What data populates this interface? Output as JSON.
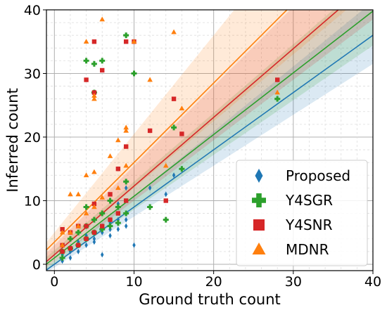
{
  "chart_data": {
    "type": "scatter",
    "xlabel": "Ground truth count",
    "ylabel": "Inferred count",
    "xlim": [
      -1,
      40
    ],
    "ylim": [
      -1,
      40
    ],
    "xticks": [
      0,
      10,
      20,
      30,
      40
    ],
    "yticks": [
      0,
      10,
      20,
      30,
      40
    ],
    "grid": true,
    "legend_position": "bottom-right",
    "series": [
      {
        "name": "Proposed",
        "marker": "diamond",
        "color": "#1f77b4",
        "fit": {
          "slope": 0.9,
          "intercept": 0.0
        },
        "band": {
          "lower_slope": 0.8,
          "lower_intercept": -0.5,
          "upper_slope": 1.02,
          "upper_intercept": 0.5
        },
        "points": [
          [
            1,
            0.5
          ],
          [
            1,
            1.0
          ],
          [
            1,
            1.5
          ],
          [
            2,
            1.0
          ],
          [
            2,
            2.0
          ],
          [
            2,
            2.5
          ],
          [
            3,
            2.0
          ],
          [
            3,
            3.0
          ],
          [
            3,
            3.5
          ],
          [
            4,
            3.0
          ],
          [
            4,
            4.0
          ],
          [
            4,
            4.5
          ],
          [
            5,
            3.5
          ],
          [
            5,
            4.0
          ],
          [
            5,
            5.0
          ],
          [
            6,
            1.5
          ],
          [
            6,
            5.0
          ],
          [
            6,
            6.0
          ],
          [
            7,
            4.5
          ],
          [
            7,
            5.5
          ],
          [
            7,
            6.5
          ],
          [
            8,
            5.5
          ],
          [
            8,
            7.0
          ],
          [
            8,
            9.5
          ],
          [
            9,
            6.0
          ],
          [
            9,
            7.0
          ],
          [
            9,
            12.0
          ],
          [
            10,
            3.0
          ],
          [
            12,
            12.0
          ],
          [
            14,
            11.0
          ],
          [
            15,
            14.0
          ],
          [
            28,
            26.0
          ]
        ]
      },
      {
        "name": "Y4SGR",
        "marker": "plus",
        "color": "#2ca02c",
        "fit": {
          "slope": 0.97,
          "intercept": 1.0
        },
        "band": {
          "lower_slope": 0.86,
          "lower_intercept": 0.0,
          "upper_slope": 1.08,
          "upper_intercept": 2.2
        },
        "points": [
          [
            1,
            1.0
          ],
          [
            1,
            2.0
          ],
          [
            2,
            2.5
          ],
          [
            2,
            4.0
          ],
          [
            3,
            3.0
          ],
          [
            3,
            5.0
          ],
          [
            4,
            4.0
          ],
          [
            4,
            6.0
          ],
          [
            4,
            9.0
          ],
          [
            4,
            32.0
          ],
          [
            5,
            5.0
          ],
          [
            5,
            7.0
          ],
          [
            5,
            31.5
          ],
          [
            5,
            27.0
          ],
          [
            6,
            5.5
          ],
          [
            6,
            8.0
          ],
          [
            6,
            32.0
          ],
          [
            7,
            6.0
          ],
          [
            7,
            10.0
          ],
          [
            8,
            6.5
          ],
          [
            8,
            9.0
          ],
          [
            9,
            8.0
          ],
          [
            9,
            13.0
          ],
          [
            9,
            36.0
          ],
          [
            10,
            30.0
          ],
          [
            12,
            9.0
          ],
          [
            14,
            7.0
          ],
          [
            15,
            21.5
          ],
          [
            16,
            15.0
          ],
          [
            28,
            26.0
          ]
        ]
      },
      {
        "name": "Y4SNR",
        "marker": "square",
        "color": "#d62728",
        "fit": {
          "slope": 1.08,
          "intercept": 1.5
        },
        "band": {
          "lower_slope": 0.95,
          "lower_intercept": 0.5,
          "upper_slope": 1.25,
          "upper_intercept": 3.0
        },
        "points": [
          [
            1,
            2.0
          ],
          [
            1,
            3.0
          ],
          [
            1,
            5.5
          ],
          [
            2,
            2.5
          ],
          [
            2,
            5.0
          ],
          [
            3,
            3.0
          ],
          [
            3,
            6.0
          ],
          [
            4,
            4.0
          ],
          [
            4,
            6.0
          ],
          [
            4,
            29.0
          ],
          [
            5,
            5.0
          ],
          [
            5,
            9.5
          ],
          [
            5,
            35.0
          ],
          [
            5,
            27.0
          ],
          [
            6,
            6.0
          ],
          [
            6,
            30.5
          ],
          [
            7,
            7.0
          ],
          [
            7,
            11.0
          ],
          [
            8,
            8.0
          ],
          [
            8,
            15.0
          ],
          [
            9,
            10.0
          ],
          [
            9,
            18.5
          ],
          [
            9,
            35.0
          ],
          [
            10,
            35.0
          ],
          [
            12,
            21.0
          ],
          [
            14,
            10.0
          ],
          [
            15,
            26.0
          ],
          [
            16,
            20.5
          ],
          [
            28,
            29.0
          ]
        ]
      },
      {
        "name": "MDNR",
        "marker": "triangle",
        "color": "#ff7f0e",
        "fit": {
          "slope": 1.25,
          "intercept": 3.5
        },
        "band": {
          "lower_slope": 1.05,
          "lower_intercept": 1.5,
          "upper_slope": 1.55,
          "upper_intercept": 5.0
        },
        "points": [
          [
            1,
            3.0
          ],
          [
            1,
            5.0
          ],
          [
            2,
            5.0
          ],
          [
            2,
            11.0
          ],
          [
            3,
            6.0
          ],
          [
            3,
            11.0
          ],
          [
            4,
            8.0
          ],
          [
            4,
            14.0
          ],
          [
            4,
            35.0
          ],
          [
            5,
            9.0
          ],
          [
            5,
            14.5
          ],
          [
            5,
            26.5
          ],
          [
            5,
            26.0
          ],
          [
            6,
            10.5
          ],
          [
            6,
            38.5
          ],
          [
            7,
            17.0
          ],
          [
            8,
            12.0
          ],
          [
            8,
            19.5
          ],
          [
            9,
            15.5
          ],
          [
            9,
            21.5
          ],
          [
            9,
            21.0
          ],
          [
            10,
            35.0
          ],
          [
            12,
            29.0
          ],
          [
            14,
            15.5
          ],
          [
            15,
            36.5
          ],
          [
            16,
            24.5
          ],
          [
            28,
            27.0
          ]
        ]
      }
    ]
  }
}
